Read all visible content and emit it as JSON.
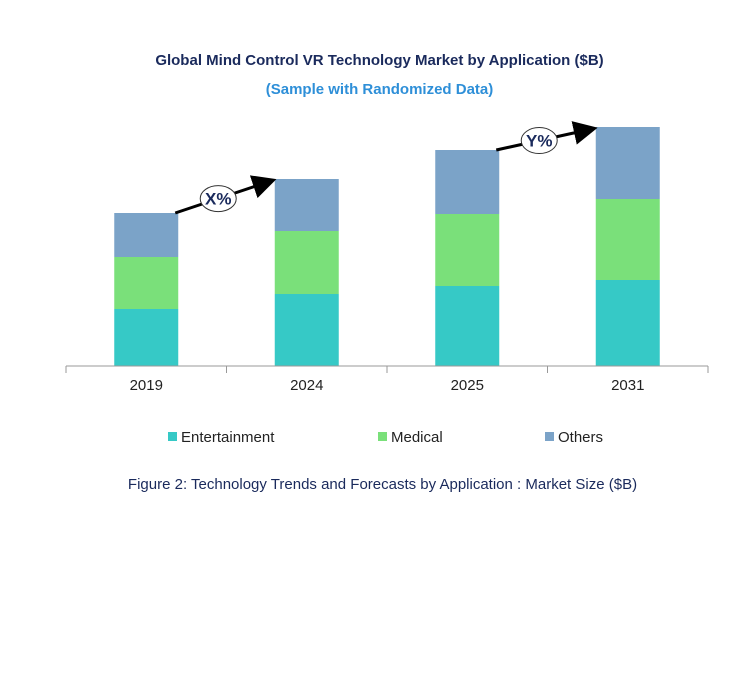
{
  "chart_data": {
    "type": "bar",
    "stacked": true,
    "title": "Global Mind Control VR Technology Market by Application ($B)",
    "subtitle": "(Sample with Randomized Data)",
    "caption": "Figure 2: Technology  Trends  and Forecasts by Application : Market Size ($B)",
    "xlabel": "",
    "ylabel": "",
    "categories": [
      "2019",
      "2024",
      "2025",
      "2031"
    ],
    "series": [
      {
        "name": "Entertainment",
        "color": "#36c9c6",
        "values": [
          57,
          72,
          80,
          86
        ]
      },
      {
        "name": "Medical",
        "color": "#7ae07a",
        "values": [
          52,
          63,
          72,
          81
        ]
      },
      {
        "name": "Others",
        "color": "#7ba3c8",
        "values": [
          44,
          52,
          64,
          72
        ]
      }
    ],
    "ylim": [
      0,
      240
    ],
    "grid": false,
    "legend": "bottom",
    "annotations": [
      {
        "text": "X%",
        "from": "2019",
        "to": "2024"
      },
      {
        "text": "Y%",
        "from": "2025",
        "to": "2031"
      }
    ]
  }
}
